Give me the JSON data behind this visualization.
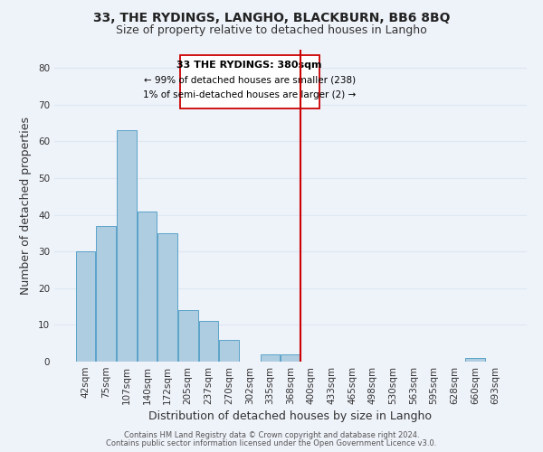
{
  "title": "33, THE RYDINGS, LANGHO, BLACKBURN, BB6 8BQ",
  "subtitle": "Size of property relative to detached houses in Langho",
  "xlabel": "Distribution of detached houses by size in Langho",
  "ylabel": "Number of detached properties",
  "footer_line1": "Contains HM Land Registry data © Crown copyright and database right 2024.",
  "footer_line2": "Contains public sector information licensed under the Open Government Licence v3.0.",
  "bin_labels": [
    "42sqm",
    "75sqm",
    "107sqm",
    "140sqm",
    "172sqm",
    "205sqm",
    "237sqm",
    "270sqm",
    "302sqm",
    "335sqm",
    "368sqm",
    "400sqm",
    "433sqm",
    "465sqm",
    "498sqm",
    "530sqm",
    "563sqm",
    "595sqm",
    "628sqm",
    "660sqm",
    "693sqm"
  ],
  "bar_heights": [
    30,
    37,
    63,
    41,
    35,
    14,
    11,
    6,
    0,
    2,
    2,
    0,
    0,
    0,
    0,
    0,
    0,
    0,
    0,
    1,
    0
  ],
  "bar_color": "#aecde0",
  "bar_edge_color": "#5ba3c9",
  "vline_x_label": "400sqm",
  "vline_color": "#cc0000",
  "annotation_box_text": [
    "33 THE RYDINGS: 380sqm",
    "← 99% of detached houses are smaller (238)",
    "1% of semi-detached houses are larger (2) →"
  ],
  "ylim": [
    0,
    85
  ],
  "yticks": [
    0,
    10,
    20,
    30,
    40,
    50,
    60,
    70,
    80
  ],
  "grid_color": "#dde8f3",
  "background_color": "#eef2f9",
  "title_fontsize": 10,
  "subtitle_fontsize": 9,
  "axis_label_fontsize": 9,
  "tick_fontsize": 7.5,
  "footer_fontsize": 6.0
}
